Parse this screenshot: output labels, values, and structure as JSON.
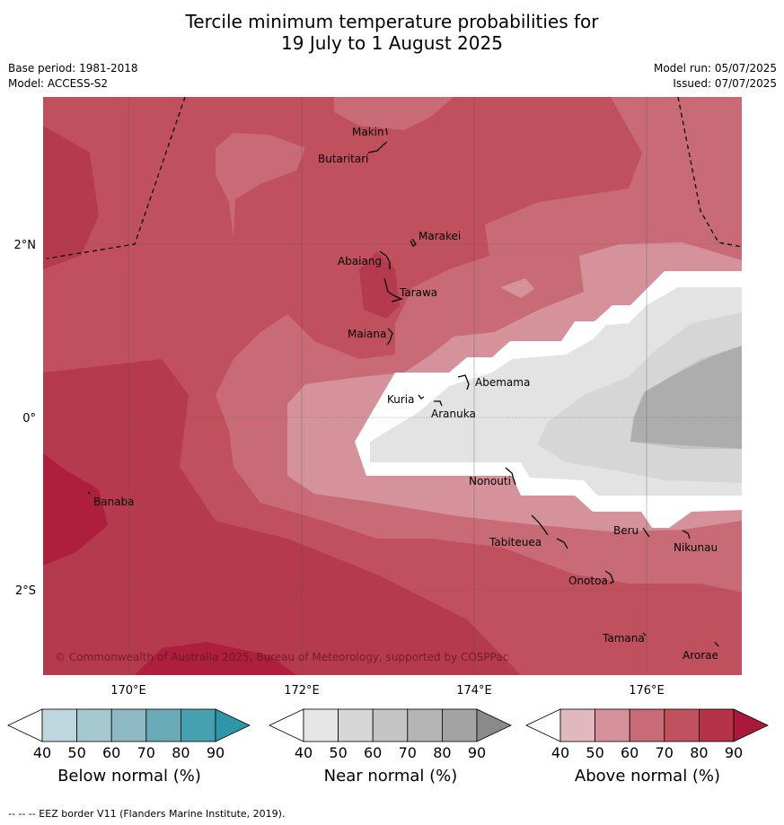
{
  "title_line1": "Tercile minimum temperature probabilities for",
  "title_line2": "19 July to 1 August 2025",
  "base_period": "Base period: 1981-2018",
  "model": "Model: ACCESS-S2",
  "model_run": "Model run: 05/07/2025",
  "issued": "Issued: 07/07/2025",
  "copyright": "© Commonwealth of Australia 2025, Bureau of Meteorology, supported by COSPPac",
  "footer": "--  --  -- EEZ border V11 (Flanders Marine Institute, 2019).",
  "map": {
    "lat_labels": [
      "2°N",
      "0°",
      "2°S"
    ],
    "lon_labels": [
      "170°E",
      "172°E",
      "174°E",
      "176°E"
    ],
    "places": [
      "Makin",
      "Butaritari",
      "Marakei",
      "Abaiang",
      "Tarawa",
      "Maiana",
      "Abemama",
      "Kuria",
      "Aranuka",
      "Nonouti",
      "Banaba",
      "Tabiteuea",
      "Beru",
      "Nikunau",
      "Onotoa",
      "Tamana",
      "Arorae"
    ]
  },
  "legend": {
    "ticks": [
      "40",
      "50",
      "60",
      "70",
      "80",
      "90"
    ],
    "below_title": "Below normal (%)",
    "near_title": "Near normal (%)",
    "above_title": "Above normal (%)",
    "below_colors": [
      "#ffffff",
      "#bed6de",
      "#a6c8d1",
      "#8cb9c4",
      "#6aa9b7",
      "#45a0b0",
      "#2f95a8"
    ],
    "near_colors": [
      "#ffffff",
      "#e6e6e6",
      "#d6d6d6",
      "#c5c5c5",
      "#b4b4b4",
      "#a3a3a3",
      "#8a8a8a"
    ],
    "above_colors": [
      "#ffffff",
      "#e2b8bf",
      "#d6929b",
      "#c96b76",
      "#c0525f",
      "#b63347",
      "#a8193a"
    ]
  }
}
